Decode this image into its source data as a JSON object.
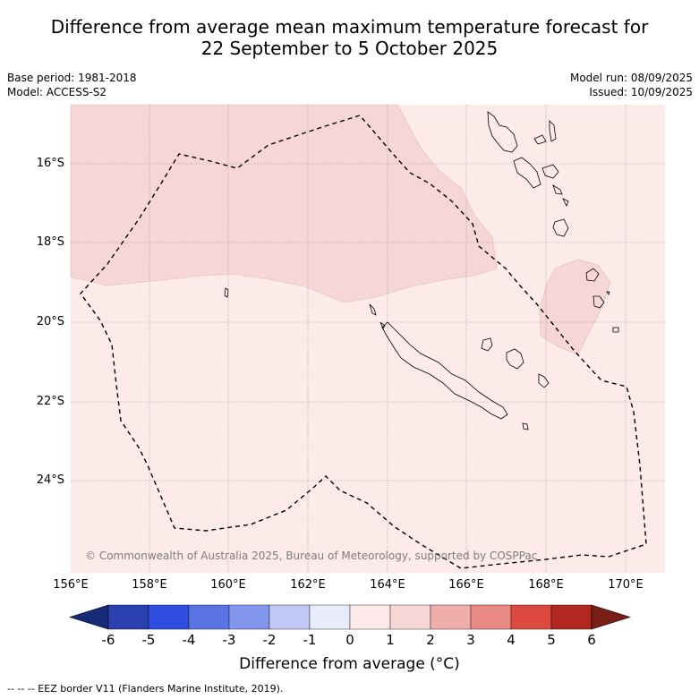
{
  "title_line1": "Difference from average mean maximum temperature forecast for",
  "title_line2": "22 September to 5 October 2025",
  "base_period": "Base period: 1981-2018",
  "model": "Model: ACCESS-S2",
  "model_run": "Model run: 08/09/2025",
  "issued": "Issued: 10/09/2025",
  "lat_labels": [
    "16°S",
    "18°S",
    "20°S",
    "22°S",
    "24°S"
  ],
  "lon_labels": [
    "156°E",
    "158°E",
    "160°E",
    "162°E",
    "164°E",
    "166°E",
    "168°E",
    "170°E"
  ],
  "colorbar_ticks": [
    "-6",
    "-5",
    "-4",
    "-3",
    "-2",
    "-1",
    "0",
    "1",
    "2",
    "3",
    "4",
    "5",
    "6"
  ],
  "colorbar_colors": [
    "#172a78",
    "#2a3fb0",
    "#2f4ee0",
    "#5a74e6",
    "#8196ec",
    "#c0c8f5",
    "#e8ecfb",
    "#fcebe9",
    "#f6d7d5",
    "#f0aeaa",
    "#e98a84",
    "#dd4b40",
    "#b0281f",
    "#7a1f18"
  ],
  "colorbar_title": "Difference from average (°C)",
  "copyright": "© Commonwealth of Australia 2025, Bureau of Meteorology, supported by COSPPac",
  "footer": "--  --  -- EEZ border V11 (Flanders Marine Institute, 2019).",
  "colors": {
    "anomaly_0_1": "#fcebe9",
    "anomaly_1_2": "#f6d7d5"
  }
}
